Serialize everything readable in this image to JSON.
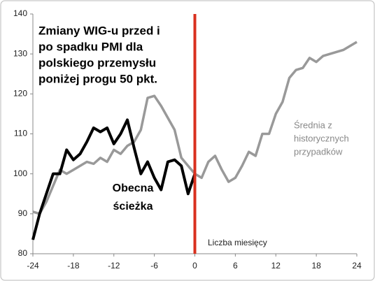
{
  "chart_data": {
    "type": "line",
    "title": [
      "Zmiany WIG-u przed i",
      "po spadku PMI dla",
      "polskiego przemysłu",
      "poniżej progu 50 pkt."
    ],
    "x_label": "Liczba miesięcy",
    "x": [
      -24,
      -23,
      -22,
      -21,
      -20,
      -19,
      -18,
      -17,
      -16,
      -15,
      -14,
      -13,
      -12,
      -11,
      -10,
      -9,
      -8,
      -7,
      -6,
      -5,
      -4,
      -3,
      -2,
      -1,
      0,
      1,
      2,
      3,
      4,
      5,
      6,
      7,
      8,
      9,
      10,
      11,
      12,
      13,
      14,
      15,
      16,
      17,
      18,
      19,
      20,
      21,
      22,
      23,
      24
    ],
    "series": [
      {
        "name": [
          "Średnia z",
          "historycznych",
          "przypadków"
        ],
        "color": "#999999",
        "values": [
          90.5,
          90,
          93,
          97,
          101,
          100,
          101,
          102,
          103,
          102.5,
          104,
          103,
          106,
          105,
          107,
          108,
          111,
          119,
          119.5,
          117,
          114,
          111,
          104,
          102,
          100,
          99,
          103,
          104.5,
          101,
          98,
          99,
          102,
          105.5,
          104.5,
          110,
          110,
          115,
          118,
          124,
          126,
          126.5,
          129,
          128,
          129.5,
          130,
          130.5,
          131,
          132,
          133
        ]
      },
      {
        "name": [
          "Obecna",
          "ścieżka"
        ],
        "color": "#000000",
        "values": [
          83.5,
          90,
          95,
          100,
          100,
          106,
          103.5,
          105,
          108,
          111.5,
          110.5,
          111.5,
          107.5,
          110,
          113.5,
          106.5,
          100,
          103,
          99,
          96,
          103,
          103.5,
          102,
          95,
          100,
          null,
          null,
          null,
          null,
          null,
          null,
          null,
          null,
          null,
          null,
          null,
          null,
          null,
          null,
          null,
          null,
          null,
          null,
          null,
          null,
          null,
          null,
          null,
          null
        ]
      }
    ],
    "vline": 0,
    "vline_color": "#d9301e",
    "xlim": [
      -24,
      24
    ],
    "xticks": [
      -24,
      -18,
      -12,
      -6,
      0,
      6,
      12,
      18,
      24
    ],
    "ylim": [
      80,
      140
    ],
    "yticks": [
      80,
      90,
      100,
      110,
      120,
      130,
      140
    ]
  }
}
